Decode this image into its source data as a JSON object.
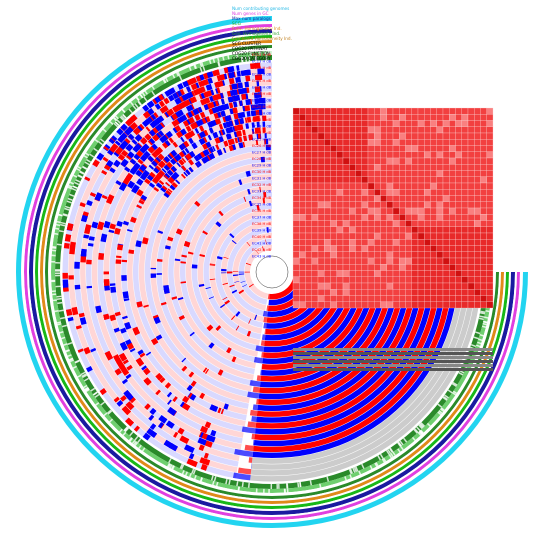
{
  "figure": {
    "top_legend": [
      {
        "text": "Num contributing genomes",
        "color": "#22b8e6"
      },
      {
        "text": "Num genes in GC",
        "color": "#e040e0"
      },
      {
        "text": "Max num paralogs",
        "color": "#1a1aa0"
      },
      {
        "text": "SCG",
        "color": "#1faa1f"
      },
      {
        "text": "Func. Homogeneity Ind.",
        "color": "#e08a1a"
      },
      {
        "text": "Geo. Homogeneity Ind.",
        "color": "#2aa02a"
      },
      {
        "text": "Combined Homogeneity Ind.",
        "color": "#c08020"
      },
      {
        "text": "SCG CLUSTER",
        "color": "#000000"
      },
      {
        "text": "COG20 PATHWAY",
        "color": "#000000"
      },
      {
        "text": "COG20 FUNCTION",
        "color": "#000000"
      },
      {
        "text": "COG20 CATEGORY",
        "color": "#000000"
      }
    ],
    "genome_labels": [
      "EC12 H dB",
      "EC13 H dB",
      "EC14 H dB",
      "EC15 H dB",
      "EC16 H dB",
      "EC17 H dB",
      "EC18 H dB",
      "EC19 H dB",
      "EC20 H dB",
      "EC21 H dB",
      "EC22 H dB",
      "EC23 H dB",
      "EC24 H dB",
      "EC25 H dB",
      "EC26 H dB",
      "EC27 H dB",
      "EC28 H dB",
      "EC29 H dB",
      "EC30 H dB",
      "EC31 H dB",
      "EC32 H dB",
      "EC33 H dB",
      "EC34 H dB",
      "EC35 H dB",
      "EC36 H dB",
      "EC37 H dB",
      "EC38 H dB",
      "EC39 H dB",
      "EC40 H dB",
      "EC41 H dB",
      "EC42 H dB",
      "EC43 H dB"
    ],
    "colors": {
      "genome_a": "#ff0000",
      "genome_b": "#0000ff",
      "bg_a": "#ffd6d6",
      "bg_b": "#d9d9ff",
      "heatmap": "#f24040",
      "heatmap_light": "#f98080",
      "outer_cyan": "#22d4f0",
      "outer_magenta": "#e040e0",
      "outer_blue": "#1a1aa0",
      "outer_green": "#18b818",
      "outer_orange": "#e08a1a",
      "outer_darkgreen": "#2a8a2a"
    }
  }
}
